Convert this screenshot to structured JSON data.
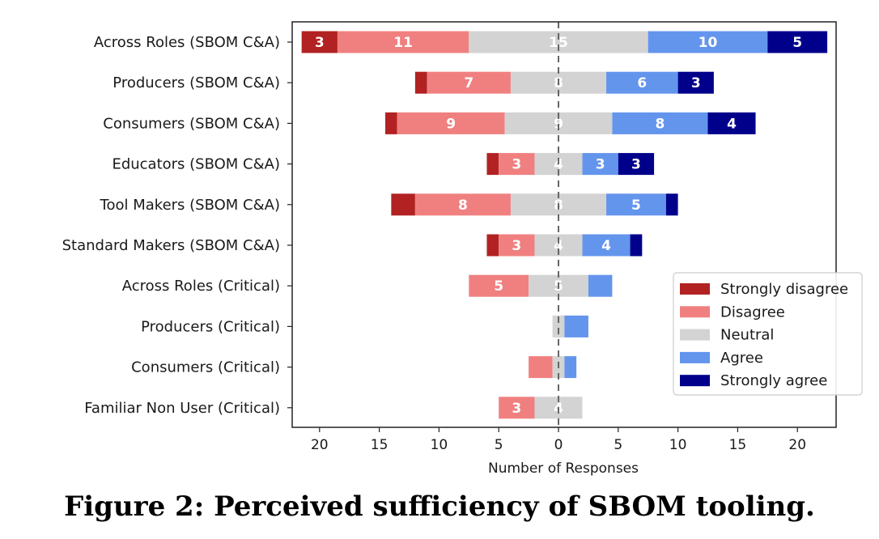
{
  "caption": "Figure 2: Perceived sufficiency of SBOM tooling.",
  "chart_data": {
    "type": "bar",
    "orientation": "horizontal-diverging",
    "xlabel": "Number of Responses",
    "xlim": [
      -22,
      23
    ],
    "xticks": [
      -20,
      -15,
      -10,
      -5,
      0,
      5,
      10,
      15,
      20
    ],
    "xtick_labels": [
      "20",
      "15",
      "10",
      "5",
      "0",
      "5",
      "10",
      "15",
      "20"
    ],
    "center_line": "dashed at 0",
    "legend_position": "lower-right",
    "categories": [
      "Across Roles (SBOM C&A)",
      "Producers (SBOM C&A)",
      "Consumers (SBOM C&A)",
      "Educators (SBOM C&A)",
      "Tool Makers (SBOM C&A)",
      "Standard Makers (SBOM C&A)",
      "Across Roles (Critical)",
      "Producers (Critical)",
      "Consumers (Critical)",
      "Familiar Non User (Critical)"
    ],
    "series": [
      {
        "name": "Strongly disagree",
        "color": "#b22222",
        "values": [
          3,
          1,
          1,
          1,
          2,
          1,
          0,
          0,
          0,
          0
        ]
      },
      {
        "name": "Disagree",
        "color": "#f08080",
        "values": [
          11,
          7,
          9,
          3,
          8,
          3,
          5,
          0,
          2,
          3
        ]
      },
      {
        "name": "Neutral",
        "color": "#d3d3d3",
        "values": [
          15,
          8,
          9,
          4,
          8,
          4,
          5,
          1,
          1,
          4
        ]
      },
      {
        "name": "Agree",
        "color": "#6495ed",
        "values": [
          10,
          6,
          8,
          3,
          5,
          4,
          2,
          2,
          1,
          0
        ]
      },
      {
        "name": "Strongly agree",
        "color": "#00008b",
        "values": [
          5,
          3,
          4,
          3,
          1,
          1,
          0,
          0,
          0,
          0
        ]
      }
    ]
  }
}
